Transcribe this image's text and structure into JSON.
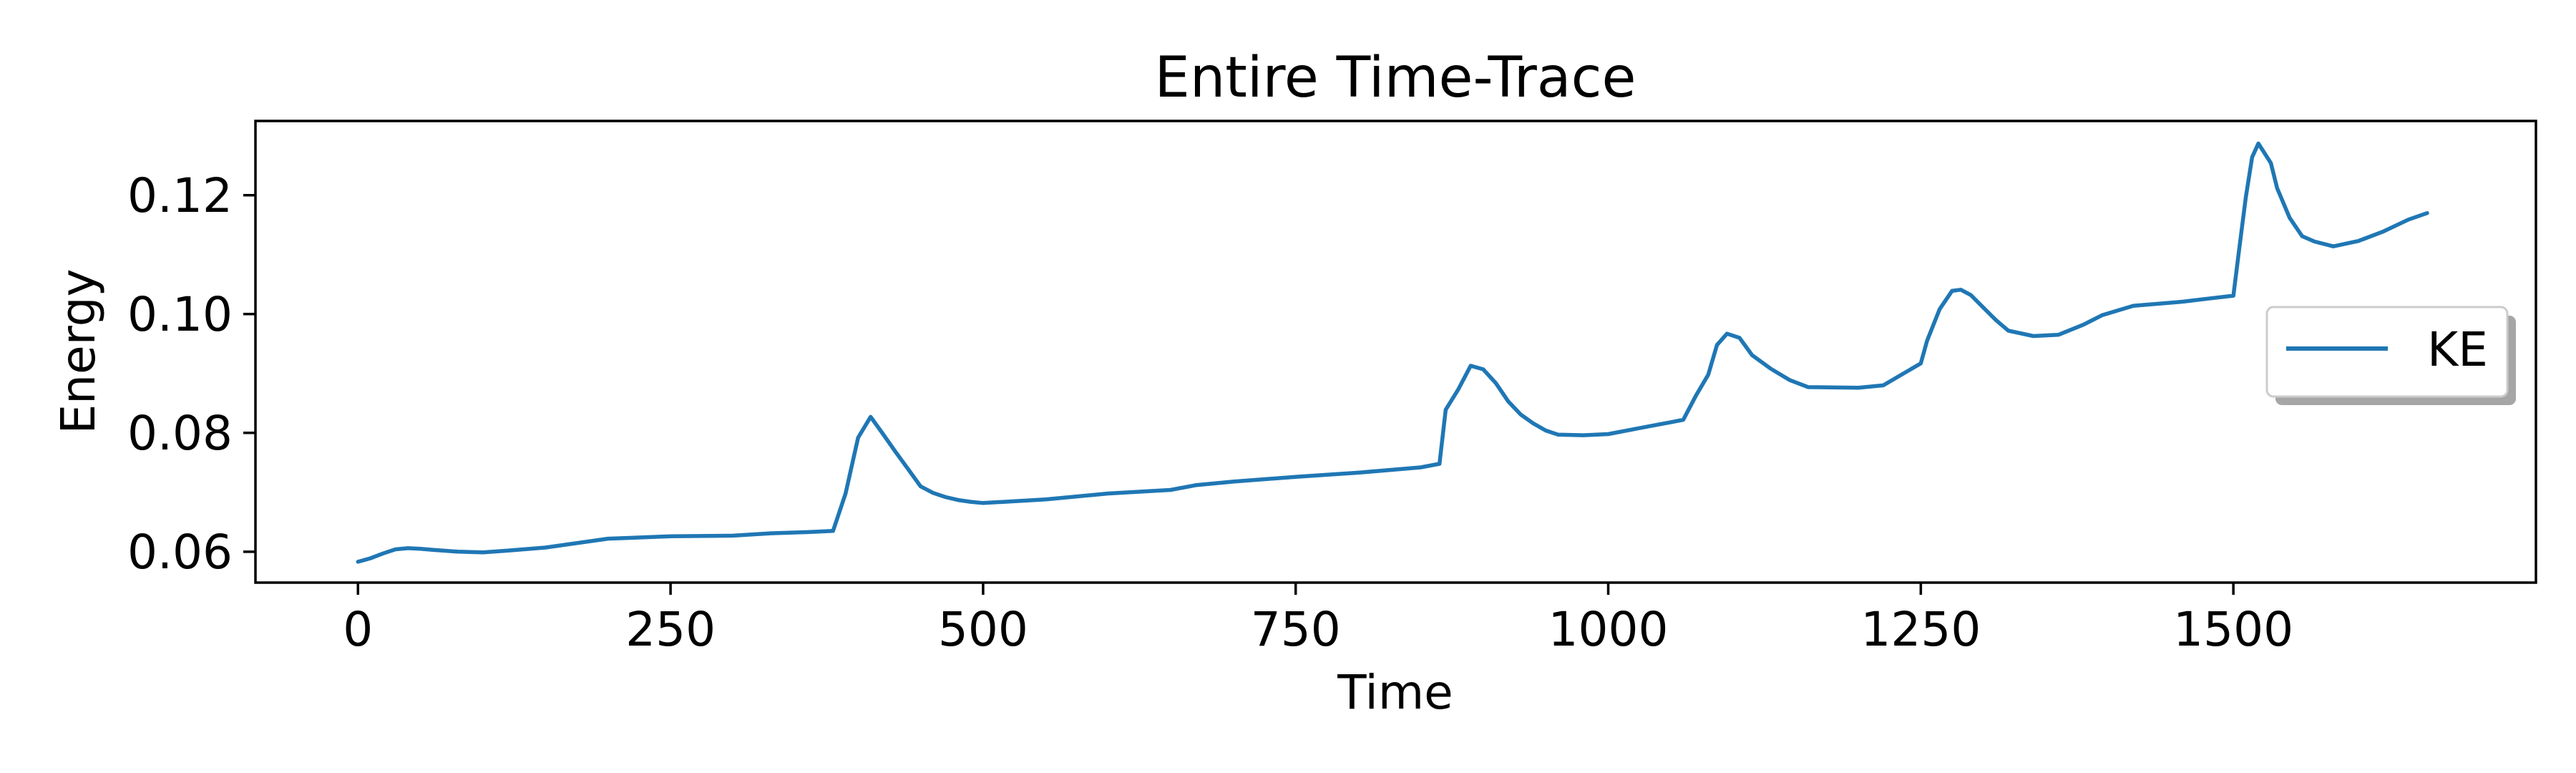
{
  "chart_data": {
    "type": "line",
    "title": "Entire Time-Trace",
    "xlabel": "Time",
    "ylabel": "Energy",
    "xlim": [
      -82,
      1742
    ],
    "ylim": [
      0.0548,
      0.1325
    ],
    "xticks": [
      0,
      250,
      500,
      750,
      1000,
      1250,
      1500
    ],
    "xtick_labels": [
      "0",
      "250",
      "500",
      "750",
      "1000",
      "1250",
      "1500"
    ],
    "yticks": [
      0.06,
      0.08,
      0.1,
      0.12
    ],
    "ytick_labels": [
      "0.06",
      "0.08",
      "0.10",
      "0.12"
    ],
    "grid": false,
    "legend_position": "center-right",
    "series": [
      {
        "name": "KE",
        "color": "#1f77b4",
        "x": [
          0,
          10,
          20,
          30,
          40,
          50,
          60,
          80,
          100,
          120,
          150,
          200,
          250,
          300,
          330,
          360,
          380,
          390,
          400,
          410,
          420,
          430,
          440,
          450,
          460,
          470,
          480,
          490,
          500,
          550,
          600,
          650,
          670,
          700,
          750,
          800,
          850,
          865,
          870,
          880,
          890,
          900,
          910,
          920,
          930,
          940,
          950,
          960,
          980,
          1000,
          1020,
          1040,
          1050,
          1060,
          1070,
          1080,
          1087,
          1095,
          1105,
          1115,
          1130,
          1145,
          1160,
          1200,
          1220,
          1250,
          1255,
          1265,
          1275,
          1282,
          1290,
          1300,
          1310,
          1320,
          1340,
          1360,
          1380,
          1395,
          1420,
          1460,
          1480,
          1500,
          1505,
          1510,
          1515,
          1520,
          1530,
          1535,
          1545,
          1555,
          1565,
          1580,
          1600,
          1620,
          1640,
          1655
        ],
        "y": [
          0.0583,
          0.0589,
          0.0597,
          0.0604,
          0.0606,
          0.0605,
          0.0603,
          0.06,
          0.0599,
          0.0602,
          0.0607,
          0.0622,
          0.0626,
          0.0627,
          0.0631,
          0.0633,
          0.0635,
          0.0698,
          0.0792,
          0.0827,
          0.0798,
          0.0768,
          0.0739,
          0.071,
          0.0699,
          0.0692,
          0.0687,
          0.0684,
          0.0682,
          0.0688,
          0.0698,
          0.0704,
          0.0712,
          0.0718,
          0.0726,
          0.0733,
          0.0742,
          0.0748,
          0.0839,
          0.0873,
          0.0913,
          0.0907,
          0.0884,
          0.0853,
          0.0831,
          0.0816,
          0.0804,
          0.0797,
          0.0796,
          0.0798,
          0.0806,
          0.0814,
          0.0818,
          0.0822,
          0.0862,
          0.0898,
          0.0948,
          0.0967,
          0.096,
          0.0931,
          0.0908,
          0.0889,
          0.0877,
          0.0876,
          0.088,
          0.0917,
          0.0955,
          0.1008,
          0.1039,
          0.1041,
          0.1032,
          0.1011,
          0.099,
          0.0972,
          0.0963,
          0.0965,
          0.0982,
          0.0998,
          0.1014,
          0.1021,
          0.1026,
          0.1031,
          0.1115,
          0.1197,
          0.1264,
          0.1287,
          0.1254,
          0.1212,
          0.1162,
          0.1131,
          0.1122,
          0.1114,
          0.1123,
          0.1139,
          0.1159,
          0.117
        ]
      }
    ]
  }
}
